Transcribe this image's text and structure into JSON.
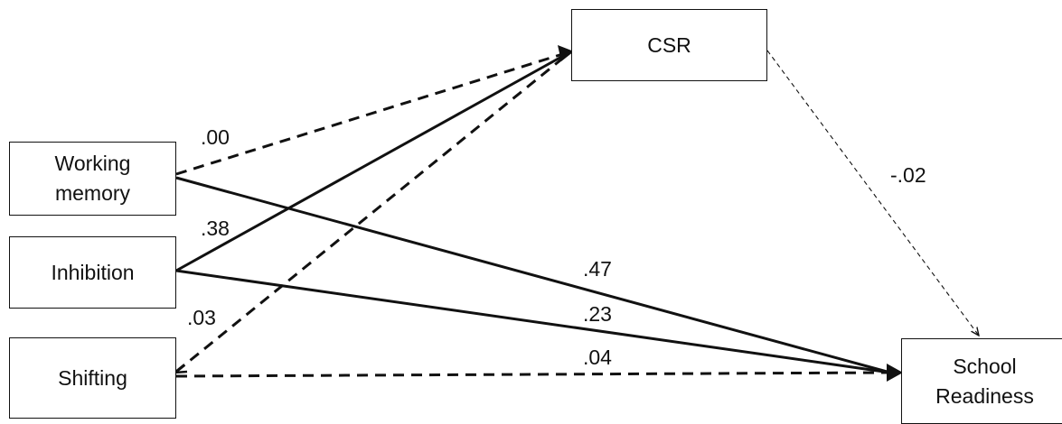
{
  "nodes": {
    "csr": "CSR",
    "working_memory": "Working\nmemory",
    "inhibition": "Inhibition",
    "shifting": "Shifting",
    "school_readiness": "School\nReadiness"
  },
  "paths": [
    {
      "from": "working_memory",
      "to": "csr",
      "coefficient": ".00",
      "style": "dashed"
    },
    {
      "from": "inhibition",
      "to": "csr",
      "coefficient": ".38",
      "style": "solid"
    },
    {
      "from": "shifting",
      "to": "csr",
      "coefficient": ".03",
      "style": "dashed"
    },
    {
      "from": "working_memory",
      "to": "school_readiness",
      "coefficient": ".47",
      "style": "solid"
    },
    {
      "from": "inhibition",
      "to": "school_readiness",
      "coefficient": ".23",
      "style": "solid"
    },
    {
      "from": "shifting",
      "to": "school_readiness",
      "coefficient": ".04",
      "style": "dashed"
    },
    {
      "from": "csr",
      "to": "school_readiness",
      "coefficient": "-.02",
      "style": "thin-dashed"
    }
  ],
  "colors": {
    "stroke": "#111111",
    "background": "#ffffff"
  }
}
